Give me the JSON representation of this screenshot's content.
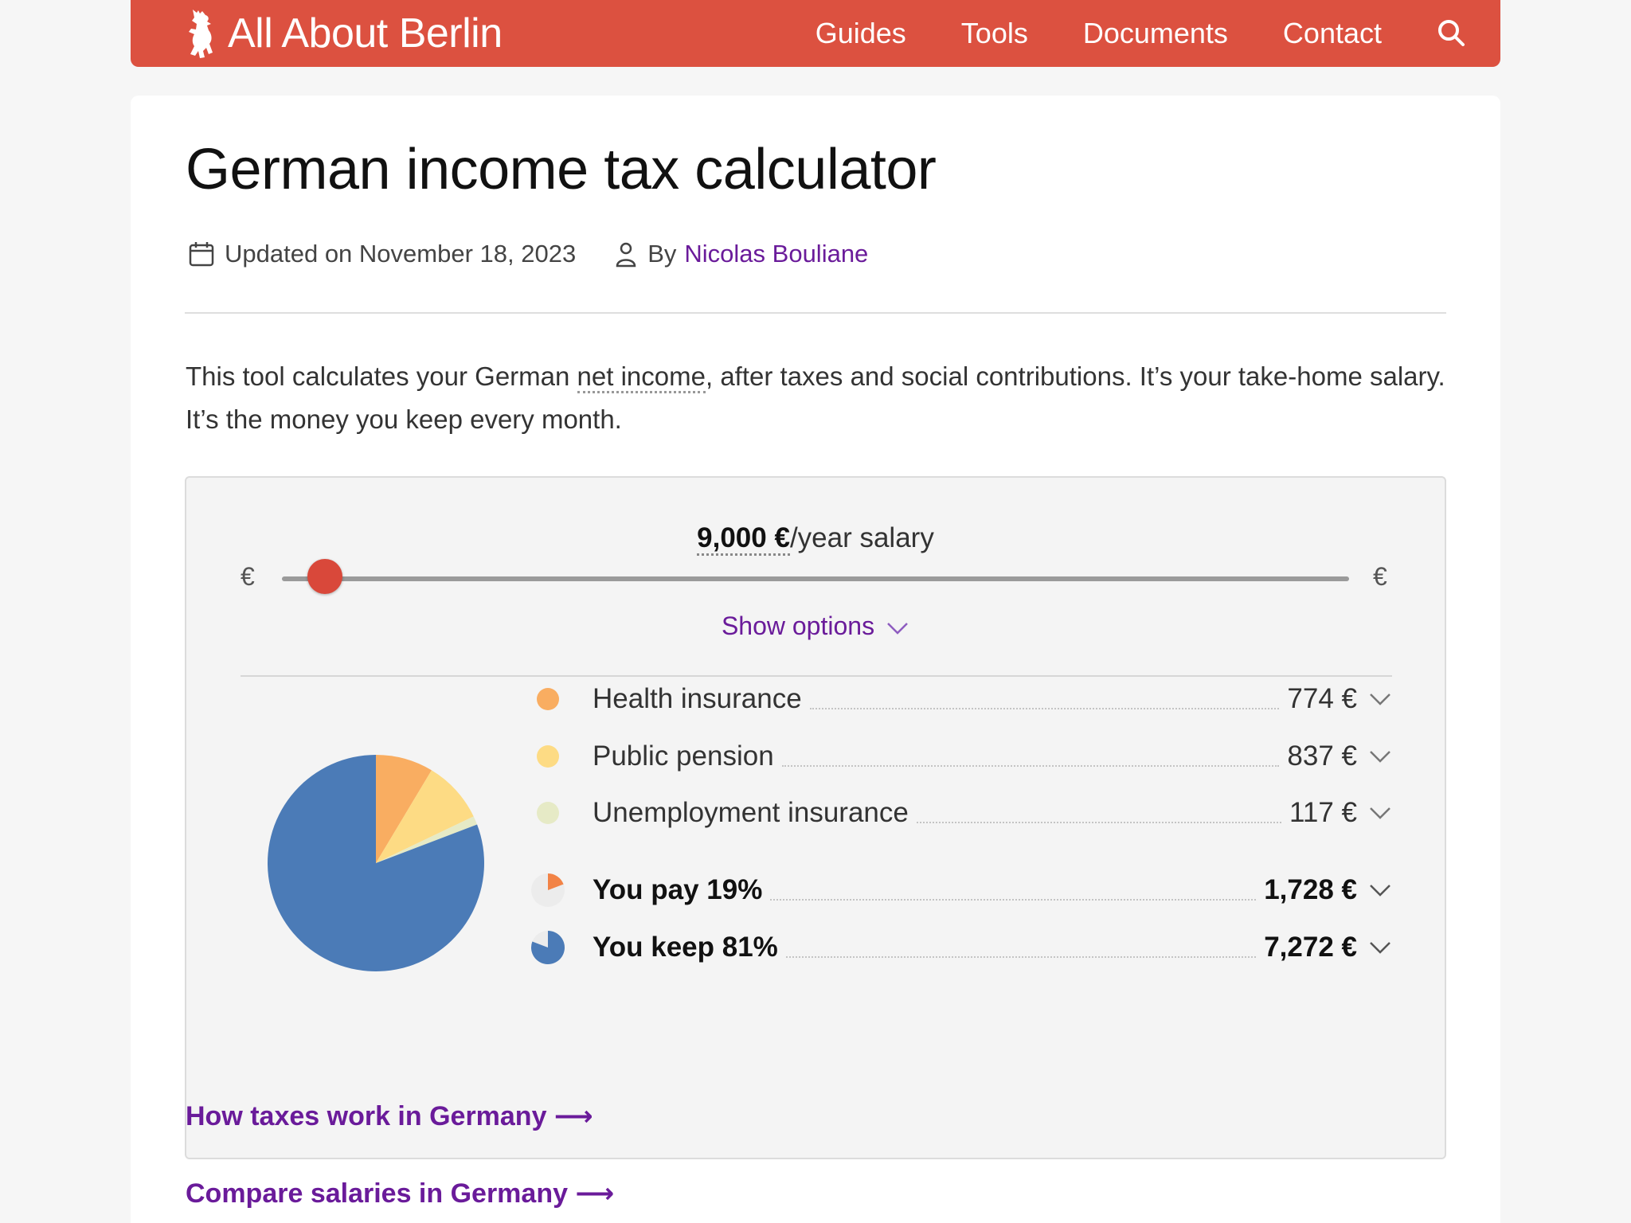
{
  "header": {
    "site_name": "All About Berlin",
    "nav": [
      "Guides",
      "Tools",
      "Documents",
      "Contact"
    ],
    "brand_color": "#dc5140"
  },
  "page": {
    "title": "German income tax calculator",
    "updated": "Updated on November 18, 2023",
    "by": "By",
    "author": "Nicolas Bouliane",
    "intro_before": "This tool calculates your German ",
    "intro_link": "net income",
    "intro_after": ", after taxes and social contributions. It’s your take-home salary. It’s the money you keep every month."
  },
  "calculator": {
    "salary_amount": "9,000 €",
    "salary_suffix": "/year salary",
    "currency_left": "€",
    "currency_right": "€",
    "slider_position_fraction": 0.04,
    "show_options": "Show options"
  },
  "breakdown": {
    "rows": [
      {
        "label": "Health insurance",
        "value": "774 €",
        "color": "#f9ad61"
      },
      {
        "label": "Public pension",
        "value": "837 €",
        "color": "#fddb84"
      },
      {
        "label": "Unemployment insurance",
        "value": "117 €",
        "color": "#e6eac6"
      }
    ],
    "pay": {
      "label": "You pay 19%",
      "value": "1,728 €",
      "color": "#f28346"
    },
    "keep": {
      "label": "You keep 81%",
      "value": "7,272 €",
      "color": "#4b7bb7"
    }
  },
  "chart_data": {
    "type": "pie",
    "categories": [
      "Health insurance",
      "Public pension",
      "Unemployment insurance",
      "You keep"
    ],
    "values": [
      774,
      837,
      117,
      7272
    ],
    "colors": [
      "#f9ad61",
      "#fddb84",
      "#e6eac6",
      "#4b7bb7"
    ]
  },
  "links": {
    "taxes": "How taxes work in Germany ⟶",
    "compare": "Compare salaries in Germany ⟶"
  }
}
